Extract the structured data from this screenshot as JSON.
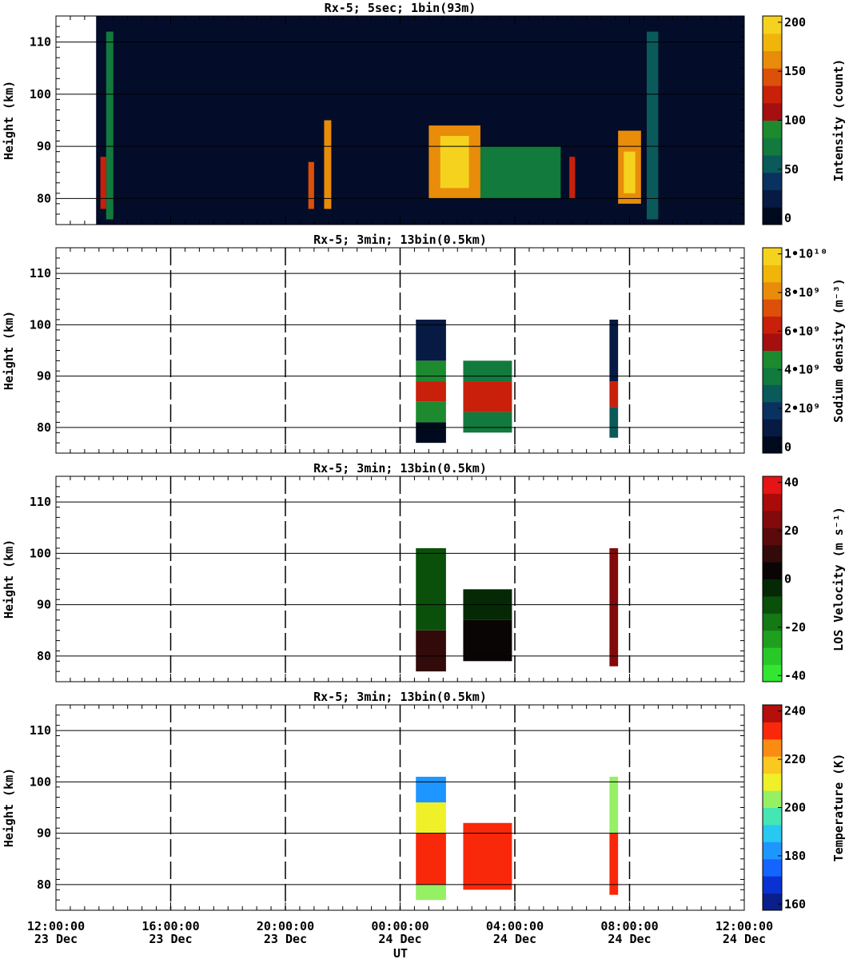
{
  "figure": {
    "xaxis": {
      "label": "UT",
      "ticks": [
        {
          "time": "12:00:00",
          "date": "23 Dec",
          "hours": 0
        },
        {
          "time": "16:00:00",
          "date": "23 Dec",
          "hours": 4
        },
        {
          "time": "20:00:00",
          "date": "23 Dec",
          "hours": 8
        },
        {
          "time": "00:00:00",
          "date": "24 Dec",
          "hours": 12
        },
        {
          "time": "04:00:00",
          "date": "24 Dec",
          "hours": 16
        },
        {
          "time": "08:00:00",
          "date": "24 Dec",
          "hours": 20
        },
        {
          "time": "12:00:00",
          "date": "24 Dec",
          "hours": 24
        }
      ]
    }
  },
  "chart_data": [
    {
      "type": "heatmap",
      "title": "Rx-5;  5sec; 1bin(93m)",
      "ylabel": "Height (km)",
      "ylim": [
        75,
        115
      ],
      "yticks": [
        80,
        90,
        100,
        110
      ],
      "x_unit": "hours since 12:00:00 23 Dec UT",
      "xlim": [
        0,
        24
      ],
      "grid_dashed_x": [],
      "colorbar": {
        "label": "Intensity (count)",
        "range": [
          0,
          200
        ],
        "ticks": [
          "0",
          "50",
          "100",
          "150",
          "200"
        ],
        "colors": [
          "#000a1e",
          "#061a44",
          "#0a3260",
          "#0b5a5a",
          "#117a3c",
          "#1e8a30",
          "#a50f0f",
          "#c8200a",
          "#dc500a",
          "#e88c0a",
          "#f0b40a",
          "#f5d21e"
        ]
      },
      "background_span_hours": [
        1.4,
        25.2
      ],
      "cells": [
        {
          "x0": 1.55,
          "x1": 1.75,
          "y0": 78,
          "y1": 88,
          "v": 130
        },
        {
          "x0": 1.75,
          "x1": 2.0,
          "y0": 76,
          "y1": 112,
          "v": 70
        },
        {
          "x0": 8.8,
          "x1": 9.0,
          "y0": 78,
          "y1": 87,
          "v": 140
        },
        {
          "x0": 9.35,
          "x1": 9.6,
          "y0": 78,
          "y1": 95,
          "v": 160
        },
        {
          "x0": 13.0,
          "x1": 14.8,
          "y0": 80,
          "y1": 94,
          "v": 150
        },
        {
          "x0": 13.4,
          "x1": 14.4,
          "y0": 82,
          "y1": 92,
          "v": 185
        },
        {
          "x0": 14.8,
          "x1": 17.6,
          "y0": 80,
          "y1": 90,
          "v": 80
        },
        {
          "x0": 17.9,
          "x1": 18.1,
          "y0": 80,
          "y1": 88,
          "v": 120
        },
        {
          "x0": 19.6,
          "x1": 20.4,
          "y0": 79,
          "y1": 93,
          "v": 150
        },
        {
          "x0": 19.8,
          "x1": 20.2,
          "y0": 81,
          "y1": 89,
          "v": 195
        },
        {
          "x0": 20.6,
          "x1": 21.0,
          "y0": 76,
          "y1": 112,
          "v": 60
        }
      ]
    },
    {
      "type": "heatmap",
      "title": "Rx-5; 3min; 13bin(0.5km)",
      "ylabel": "Height (km)",
      "ylim": [
        75,
        115
      ],
      "yticks": [
        80,
        90,
        100,
        110
      ],
      "x_unit": "hours since 12:00:00 23 Dec UT",
      "xlim": [
        0,
        24
      ],
      "grid_dashed_x": [
        4,
        8,
        12,
        16,
        20
      ],
      "colorbar": {
        "label": "Sodium density (m⁻³)",
        "range": [
          0,
          10000000000.0
        ],
        "ticks": [
          "0",
          "2•10⁹",
          "4•10⁹",
          "6•10⁹",
          "8•10⁹",
          "1•10¹⁰"
        ],
        "colors": [
          "#000a1e",
          "#061a44",
          "#0a3260",
          "#0b5a5a",
          "#117a3c",
          "#1e8a30",
          "#a50f0f",
          "#c8200a",
          "#dc500a",
          "#e88c0a",
          "#f0b40a",
          "#f5d21e"
        ]
      },
      "cells": [
        {
          "x0": 12.55,
          "x1": 13.6,
          "y0": 77,
          "y1": 81,
          "v": 500000000.0
        },
        {
          "x0": 12.55,
          "x1": 13.6,
          "y0": 81,
          "y1": 85,
          "v": 4500000000.0
        },
        {
          "x0": 12.55,
          "x1": 13.6,
          "y0": 85,
          "y1": 89,
          "v": 6500000000.0
        },
        {
          "x0": 12.55,
          "x1": 13.6,
          "y0": 89,
          "y1": 93,
          "v": 4500000000.0
        },
        {
          "x0": 12.55,
          "x1": 13.6,
          "y0": 93,
          "y1": 101,
          "v": 1000000000.0
        },
        {
          "x0": 14.2,
          "x1": 15.9,
          "y0": 79,
          "y1": 83,
          "v": 4000000000.0
        },
        {
          "x0": 14.2,
          "x1": 15.9,
          "y0": 83,
          "y1": 89,
          "v": 6500000000.0
        },
        {
          "x0": 14.2,
          "x1": 15.9,
          "y0": 89,
          "y1": 93,
          "v": 4000000000.0
        },
        {
          "x0": 19.3,
          "x1": 19.6,
          "y0": 78,
          "y1": 84,
          "v": 3000000000.0
        },
        {
          "x0": 19.3,
          "x1": 19.6,
          "y0": 84,
          "y1": 89,
          "v": 6000000000.0
        },
        {
          "x0": 19.3,
          "x1": 19.6,
          "y0": 89,
          "y1": 101,
          "v": 1500000000.0
        }
      ]
    },
    {
      "type": "heatmap",
      "title": "Rx-5; 3min; 13bin(0.5km)",
      "ylabel": "Height (km)",
      "ylim": [
        75,
        115
      ],
      "yticks": [
        80,
        90,
        100,
        110
      ],
      "x_unit": "hours since 12:00:00 23 Dec UT",
      "xlim": [
        0,
        24
      ],
      "grid_dashed_x": [
        4,
        8,
        12,
        16,
        20
      ],
      "colorbar": {
        "label": "LOS Velocity (m s⁻¹)",
        "range": [
          -50,
          50
        ],
        "ticks": [
          "-40",
          "-20",
          "0",
          "20",
          "40"
        ],
        "colors": [
          "#32e632",
          "#28c828",
          "#1ea01e",
          "#147814",
          "#0a500a",
          "#052805",
          "#0a0505",
          "#320a0a",
          "#5a0a0a",
          "#820a0a",
          "#aa0a0a",
          "#e61414"
        ]
      },
      "cells": [
        {
          "x0": 12.55,
          "x1": 13.6,
          "y0": 77,
          "y1": 85,
          "v": 15
        },
        {
          "x0": 12.55,
          "x1": 13.6,
          "y0": 85,
          "y1": 101,
          "v": -15
        },
        {
          "x0": 14.2,
          "x1": 15.9,
          "y0": 79,
          "y1": 87,
          "v": 5
        },
        {
          "x0": 14.2,
          "x1": 15.9,
          "y0": 87,
          "y1": 93,
          "v": -8
        },
        {
          "x0": 19.3,
          "x1": 19.6,
          "y0": 78,
          "y1": 101,
          "v": 25
        }
      ]
    },
    {
      "type": "heatmap",
      "title": "Rx-5; 3min; 13bin(0.5km)",
      "ylabel": "Height (km)",
      "ylim": [
        75,
        115
      ],
      "yticks": [
        80,
        90,
        100,
        110
      ],
      "x_unit": "hours since 12:00:00 23 Dec UT",
      "xlim": [
        0,
        24
      ],
      "grid_dashed_x": [
        4,
        8,
        12,
        16,
        20
      ],
      "colorbar": {
        "label": "Temperature (K)",
        "range": [
          150,
          250
        ],
        "ticks": [
          "160",
          "180",
          "200",
          "220",
          "240"
        ],
        "colors": [
          "#0a1e8c",
          "#0a32d2",
          "#1464ff",
          "#1e96ff",
          "#28c8f0",
          "#46e6b4",
          "#96f064",
          "#f0f028",
          "#fac81e",
          "#fa8c14",
          "#fa280a",
          "#b40f0a"
        ]
      },
      "cells": [
        {
          "x0": 12.55,
          "x1": 13.6,
          "y0": 77,
          "y1": 80,
          "v": 200
        },
        {
          "x0": 12.55,
          "x1": 13.6,
          "y0": 80,
          "y1": 90,
          "v": 240
        },
        {
          "x0": 12.55,
          "x1": 13.6,
          "y0": 90,
          "y1": 96,
          "v": 215
        },
        {
          "x0": 12.55,
          "x1": 13.6,
          "y0": 96,
          "y1": 101,
          "v": 180
        },
        {
          "x0": 14.2,
          "x1": 15.9,
          "y0": 79,
          "y1": 92,
          "v": 235
        },
        {
          "x0": 19.3,
          "x1": 19.6,
          "y0": 78,
          "y1": 90,
          "v": 235
        },
        {
          "x0": 19.3,
          "x1": 19.6,
          "y0": 90,
          "y1": 101,
          "v": 200
        }
      ]
    }
  ]
}
